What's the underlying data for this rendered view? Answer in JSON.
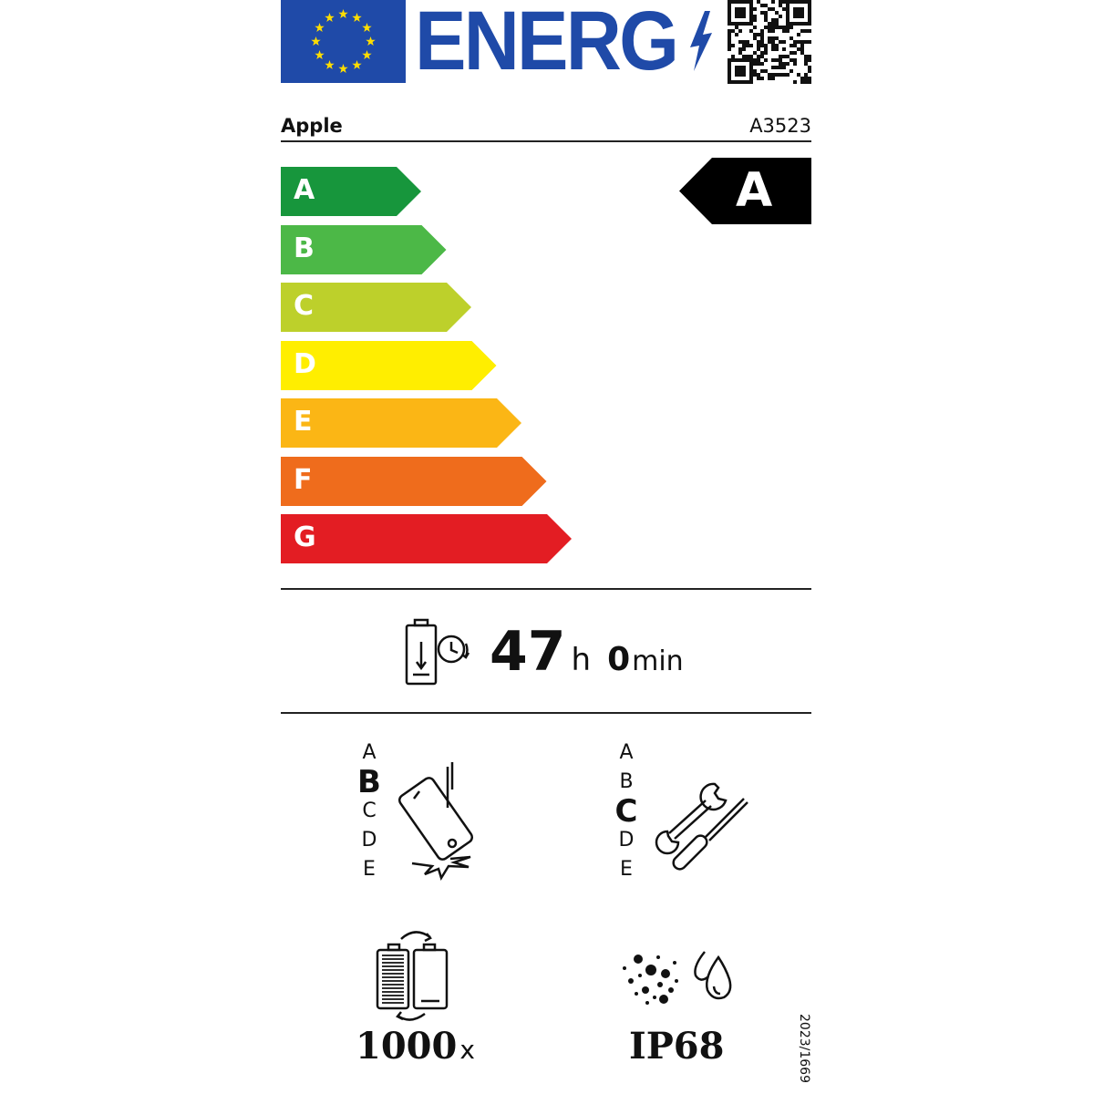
{
  "header": {
    "logo_text": "ENERG",
    "eu_flag_icon": "eu-flag-icon",
    "qr_icon": "qr-code-icon",
    "brand_color": "#1f4aa8"
  },
  "supplier": "Apple",
  "model": "A3523",
  "energy_scale": [
    {
      "letter": "A",
      "color": "#17963c"
    },
    {
      "letter": "B",
      "color": "#4cb847"
    },
    {
      "letter": "C",
      "color": "#bdd02b"
    },
    {
      "letter": "D",
      "color": "#ffee00"
    },
    {
      "letter": "E",
      "color": "#fbb615"
    },
    {
      "letter": "F",
      "color": "#ef6c1c"
    },
    {
      "letter": "G",
      "color": "#e31d23"
    }
  ],
  "energy_class": "A",
  "battery_endurance": {
    "hours": "47",
    "hours_unit": "h",
    "minutes": "0",
    "minutes_unit": "min"
  },
  "drop_resistance": {
    "scale": [
      "A",
      "B",
      "C",
      "D",
      "E"
    ],
    "selected": "B"
  },
  "repairability": {
    "scale": [
      "A",
      "B",
      "C",
      "D",
      "E"
    ],
    "selected": "C"
  },
  "battery_cycles": {
    "value": "1000",
    "unit": "x"
  },
  "ingress_protection": "IP68",
  "regulation": "2023/1669"
}
